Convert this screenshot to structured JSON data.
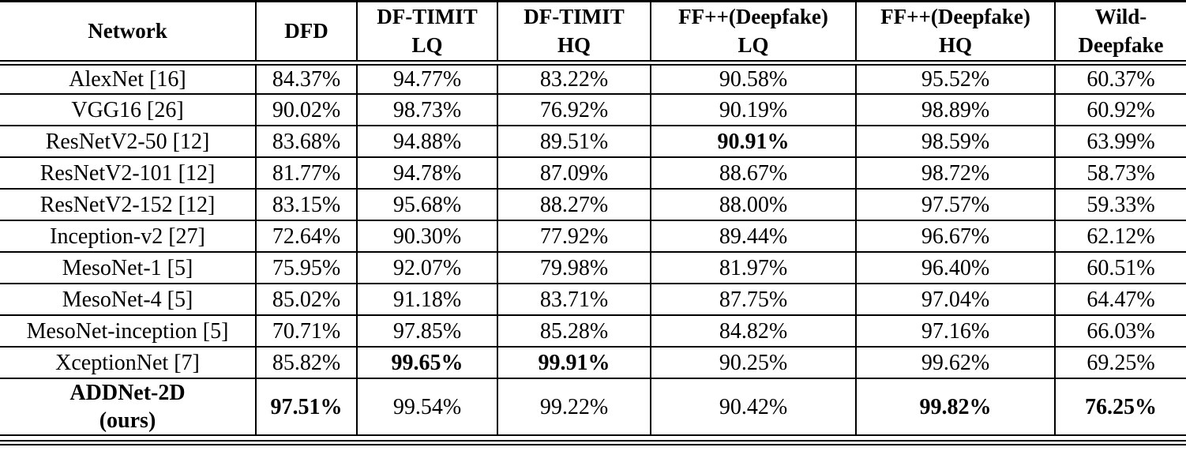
{
  "page": {
    "background_color": "#ffffff",
    "text_color": "#000000",
    "border_color": "#000000"
  },
  "table": {
    "columns": [
      "Network",
      "DFD",
      "DF-TIMIT\nLQ",
      "DF-TIMIT\nHQ",
      "FF++(Deepfake)\nLQ",
      "FF++(Deepfake)\nHQ",
      "Wild-\nDeepfake"
    ],
    "rows": [
      {
        "network": "AlexNet [16]",
        "network_bold": false,
        "values": [
          "84.37%",
          "94.77%",
          "83.22%",
          "90.58%",
          "95.52%",
          "60.37%"
        ],
        "bold_cols": []
      },
      {
        "network": "VGG16 [26]",
        "network_bold": false,
        "values": [
          "90.02%",
          "98.73%",
          "76.92%",
          "90.19%",
          "98.89%",
          "60.92%"
        ],
        "bold_cols": []
      },
      {
        "network": "ResNetV2-50 [12]",
        "network_bold": false,
        "values": [
          "83.68%",
          "94.88%",
          "89.51%",
          "90.91%",
          "98.59%",
          "63.99%"
        ],
        "bold_cols": [
          3
        ]
      },
      {
        "network": "ResNetV2-101 [12]",
        "network_bold": false,
        "values": [
          "81.77%",
          "94.78%",
          "87.09%",
          "88.67%",
          "98.72%",
          "58.73%"
        ],
        "bold_cols": []
      },
      {
        "network": "ResNetV2-152 [12]",
        "network_bold": false,
        "values": [
          "83.15%",
          "95.68%",
          "88.27%",
          "88.00%",
          "97.57%",
          "59.33%"
        ],
        "bold_cols": []
      },
      {
        "network": "Inception-v2 [27]",
        "network_bold": false,
        "values": [
          "72.64%",
          "90.30%",
          "77.92%",
          "89.44%",
          "96.67%",
          "62.12%"
        ],
        "bold_cols": []
      },
      {
        "network": "MesoNet-1 [5]",
        "network_bold": false,
        "values": [
          "75.95%",
          "92.07%",
          "79.98%",
          "81.97%",
          "96.40%",
          "60.51%"
        ],
        "bold_cols": []
      },
      {
        "network": "MesoNet-4 [5]",
        "network_bold": false,
        "values": [
          "85.02%",
          "91.18%",
          "83.71%",
          "87.75%",
          "97.04%",
          "64.47%"
        ],
        "bold_cols": []
      },
      {
        "network": "MesoNet-inception [5]",
        "network_bold": false,
        "values": [
          "70.71%",
          "97.85%",
          "85.28%",
          "84.82%",
          "97.16%",
          "66.03%"
        ],
        "bold_cols": []
      },
      {
        "network": "XceptionNet [7]",
        "network_bold": false,
        "values": [
          "85.82%",
          "99.65%",
          "99.91%",
          "90.25%",
          "99.62%",
          "69.25%"
        ],
        "bold_cols": [
          1,
          2
        ]
      },
      {
        "network": "ADDNet-2D\n(ours)",
        "network_bold": true,
        "values": [
          "97.51%",
          "99.54%",
          "99.22%",
          "90.42%",
          "99.82%",
          "76.25%"
        ],
        "bold_cols": [
          0,
          4,
          5
        ]
      }
    ]
  }
}
